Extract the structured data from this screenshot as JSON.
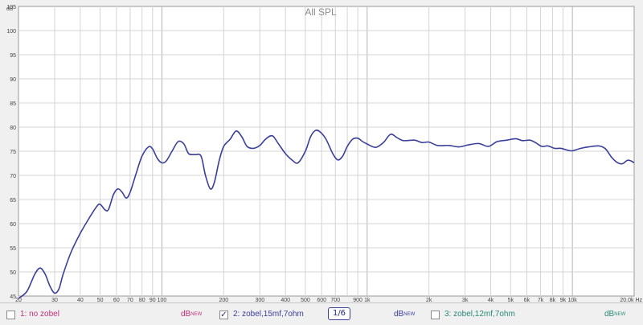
{
  "chart_data": {
    "type": "line",
    "title": "All SPL",
    "ylabel": "dB",
    "xscale": "log",
    "xlim": [
      20,
      20000
    ],
    "ylim": [
      45,
      105
    ],
    "grid": true,
    "y_ticks": [
      45,
      50,
      55,
      60,
      65,
      70,
      75,
      80,
      85,
      90,
      95,
      100,
      105
    ],
    "x_ticks": [
      {
        "v": 20,
        "label": "20"
      },
      {
        "v": 30,
        "label": "30"
      },
      {
        "v": 40,
        "label": "40"
      },
      {
        "v": 50,
        "label": "50"
      },
      {
        "v": 60,
        "label": "60"
      },
      {
        "v": 70,
        "label": "70"
      },
      {
        "v": 80,
        "label": "80"
      },
      {
        "v": 90,
        "label": "90"
      },
      {
        "v": 100,
        "label": "100"
      },
      {
        "v": 200,
        "label": "200"
      },
      {
        "v": 300,
        "label": "300"
      },
      {
        "v": 400,
        "label": "400"
      },
      {
        "v": 500,
        "label": "500"
      },
      {
        "v": 600,
        "label": "600"
      },
      {
        "v": 700,
        "label": "700"
      },
      {
        "v": 900,
        "label": "900"
      },
      {
        "v": 1000,
        "label": "1k"
      },
      {
        "v": 2000,
        "label": "2k"
      },
      {
        "v": 3000,
        "label": "3k"
      },
      {
        "v": 4000,
        "label": "4k"
      },
      {
        "v": 5000,
        "label": "5k"
      },
      {
        "v": 6000,
        "label": "6k"
      },
      {
        "v": 7000,
        "label": "7k"
      },
      {
        "v": 8000,
        "label": "8k"
      },
      {
        "v": 9000,
        "label": "9k"
      },
      {
        "v": 10000,
        "label": "10k"
      },
      {
        "v": 20000,
        "label": "20.0k Hz"
      }
    ],
    "series": [
      {
        "name": "2: zobel,15mf,7ohm",
        "color": "#3a3f9a",
        "points": [
          [
            20,
            44.5
          ],
          [
            22,
            46.0
          ],
          [
            24,
            49.5
          ],
          [
            25.5,
            50.8
          ],
          [
            27,
            49.5
          ],
          [
            28.5,
            47.0
          ],
          [
            30,
            45.6
          ],
          [
            31.5,
            46.5
          ],
          [
            33,
            49.5
          ],
          [
            36,
            54.0
          ],
          [
            40,
            58.0
          ],
          [
            44,
            61.0
          ],
          [
            48,
            63.5
          ],
          [
            50,
            64.0
          ],
          [
            53,
            62.8
          ],
          [
            55,
            63.0
          ],
          [
            58,
            66.0
          ],
          [
            61,
            67.2
          ],
          [
            64,
            66.5
          ],
          [
            67,
            65.3
          ],
          [
            70,
            66.5
          ],
          [
            75,
            70.5
          ],
          [
            80,
            74.0
          ],
          [
            86,
            75.9
          ],
          [
            90,
            75.5
          ],
          [
            95,
            73.5
          ],
          [
            100,
            72.6
          ],
          [
            105,
            73.0
          ],
          [
            112,
            75.0
          ],
          [
            120,
            77.0
          ],
          [
            128,
            76.5
          ],
          [
            135,
            74.5
          ],
          [
            145,
            74.3
          ],
          [
            155,
            74.0
          ],
          [
            163,
            70.0
          ],
          [
            172,
            67.2
          ],
          [
            180,
            68.5
          ],
          [
            190,
            73.0
          ],
          [
            200,
            76.0
          ],
          [
            215,
            77.5
          ],
          [
            230,
            79.2
          ],
          [
            245,
            78.0
          ],
          [
            260,
            76.0
          ],
          [
            280,
            75.6
          ],
          [
            300,
            76.2
          ],
          [
            320,
            77.5
          ],
          [
            345,
            78.2
          ],
          [
            370,
            76.5
          ],
          [
            400,
            74.5
          ],
          [
            430,
            73.2
          ],
          [
            460,
            72.6
          ],
          [
            500,
            75.0
          ],
          [
            530,
            78.0
          ],
          [
            560,
            79.3
          ],
          [
            590,
            79.0
          ],
          [
            630,
            77.5
          ],
          [
            680,
            74.5
          ],
          [
            720,
            73.2
          ],
          [
            760,
            74.0
          ],
          [
            800,
            76.0
          ],
          [
            850,
            77.5
          ],
          [
            900,
            77.7
          ],
          [
            950,
            77.0
          ],
          [
            1000,
            76.5
          ],
          [
            1100,
            75.8
          ],
          [
            1200,
            76.8
          ],
          [
            1300,
            78.5
          ],
          [
            1400,
            77.8
          ],
          [
            1500,
            77.2
          ],
          [
            1700,
            77.3
          ],
          [
            1850,
            76.8
          ],
          [
            2000,
            76.9
          ],
          [
            2200,
            76.2
          ],
          [
            2500,
            76.2
          ],
          [
            2800,
            75.9
          ],
          [
            3100,
            76.3
          ],
          [
            3500,
            76.6
          ],
          [
            3900,
            76.0
          ],
          [
            4300,
            77.0
          ],
          [
            4800,
            77.3
          ],
          [
            5300,
            77.6
          ],
          [
            5700,
            77.2
          ],
          [
            6200,
            77.3
          ],
          [
            6600,
            76.8
          ],
          [
            7100,
            76.0
          ],
          [
            7600,
            76.1
          ],
          [
            8200,
            75.6
          ],
          [
            8800,
            75.6
          ],
          [
            9500,
            75.2
          ],
          [
            10000,
            75.1
          ],
          [
            11000,
            75.6
          ],
          [
            12000,
            75.9
          ],
          [
            13500,
            76.1
          ],
          [
            14500,
            75.5
          ],
          [
            15500,
            73.8
          ],
          [
            16500,
            72.7
          ],
          [
            17500,
            72.4
          ],
          [
            18500,
            73.1
          ],
          [
            19300,
            73.0
          ],
          [
            20000,
            72.6
          ]
        ]
      }
    ]
  },
  "legend": {
    "entries": [
      {
        "label": "1: no zobel",
        "checked": "",
        "color": "#c0307a",
        "units": "dB",
        "units_sup": "NEW",
        "units_color": "#c0307a"
      },
      {
        "label": "2: zobel,15mf,7ohm",
        "checked": "✓",
        "color": "#3a3f9a",
        "units": "dB",
        "units_sup": "NEW",
        "units_color": "#3a3f9a"
      },
      {
        "label": "3: zobel,12mf,7ohm",
        "checked": "",
        "color": "#2a8a7a",
        "units": "dB",
        "units_sup": "NEW",
        "units_color": "#2a8a7a"
      }
    ],
    "smoothing": "1/6"
  }
}
